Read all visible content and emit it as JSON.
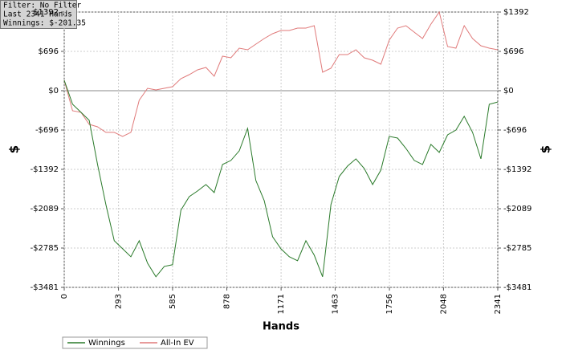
{
  "chart_data": {
    "type": "line",
    "info": [
      "Filter: No Filter",
      "Last  2341 Hands",
      "Winnings: $-201.35"
    ],
    "x_label": "Hands",
    "y_label": "$",
    "y2_label": "$",
    "x": [
      0,
      45,
      90,
      135,
      180,
      225,
      270,
      315,
      360,
      405,
      450,
      495,
      540,
      585,
      630,
      675,
      720,
      765,
      810,
      855,
      900,
      945,
      990,
      1035,
      1080,
      1125,
      1170,
      1215,
      1260,
      1305,
      1350,
      1395,
      1440,
      1485,
      1530,
      1575,
      1620,
      1665,
      1710,
      1755,
      1800,
      1845,
      1890,
      1935,
      1980,
      2025,
      2070,
      2115,
      2160,
      2205,
      2250,
      2295,
      2340
    ],
    "series": [
      {
        "name": "Winnings",
        "color": "#2a7a2a",
        "values": [
          185,
          -241,
          -383,
          -525,
          -1306,
          -2016,
          -2655,
          -2797,
          -2939,
          -2655,
          -3053,
          -3294,
          -3110,
          -3081,
          -2116,
          -1875,
          -1775,
          -1661,
          -1803,
          -1306,
          -1235,
          -1065,
          -667,
          -1590,
          -1945,
          -2584,
          -2797,
          -2939,
          -3010,
          -2655,
          -2911,
          -3294,
          -2016,
          -1519,
          -1335,
          -1207,
          -1377,
          -1661,
          -1406,
          -809,
          -838,
          -1022,
          -1235,
          -1306,
          -951,
          -1093,
          -781,
          -696,
          -454,
          -738,
          -1207,
          -241,
          -201
        ]
      },
      {
        "name": "All-In EV",
        "color": "#e07a7a",
        "values": [
          185,
          -355,
          -383,
          -596,
          -639,
          -738,
          -738,
          -809,
          -738,
          -170,
          43,
          14,
          43,
          71,
          213,
          284,
          369,
          412,
          256,
          611,
          582,
          753,
          724,
          824,
          923,
          1008,
          1065,
          1065,
          1108,
          1108,
          1150,
          327,
          398,
          639,
          639,
          724,
          582,
          540,
          469,
          895,
          1108,
          1150,
          1036,
          923,
          1178,
          1392,
          781,
          753,
          1150,
          923,
          795,
          753,
          724
        ]
      }
    ],
    "xlim": [
      0,
      2341
    ],
    "xticks": [
      0,
      293,
      585,
      878,
      1171,
      1463,
      1756,
      2048,
      2341
    ],
    "ylim": [
      -3481,
      1392
    ],
    "yticks": [
      {
        "value": 1392,
        "label": "$1392"
      },
      {
        "value": 696,
        "label": "$696"
      },
      {
        "value": 0,
        "label": "$0"
      },
      {
        "value": -696,
        "label": "-$696"
      },
      {
        "value": -1392,
        "label": "-$1392"
      },
      {
        "value": -2089,
        "label": "-$2089"
      },
      {
        "value": -2785,
        "label": "-$2785"
      },
      {
        "value": -3481,
        "label": "-$3481"
      }
    ],
    "y2lim": [
      -3481,
      1392
    ],
    "y2ticks": [
      {
        "value": 1392,
        "label": "$1392"
      },
      {
        "value": 696,
        "label": "$696"
      },
      {
        "value": 0,
        "label": "$0"
      },
      {
        "value": -696,
        "label": "-$696"
      },
      {
        "value": -1392,
        "label": "-$1392"
      },
      {
        "value": -2089,
        "label": "-$2089"
      },
      {
        "value": -2785,
        "label": "-$2785"
      },
      {
        "value": -3481,
        "label": "-$3481"
      }
    ],
    "grid": true
  }
}
